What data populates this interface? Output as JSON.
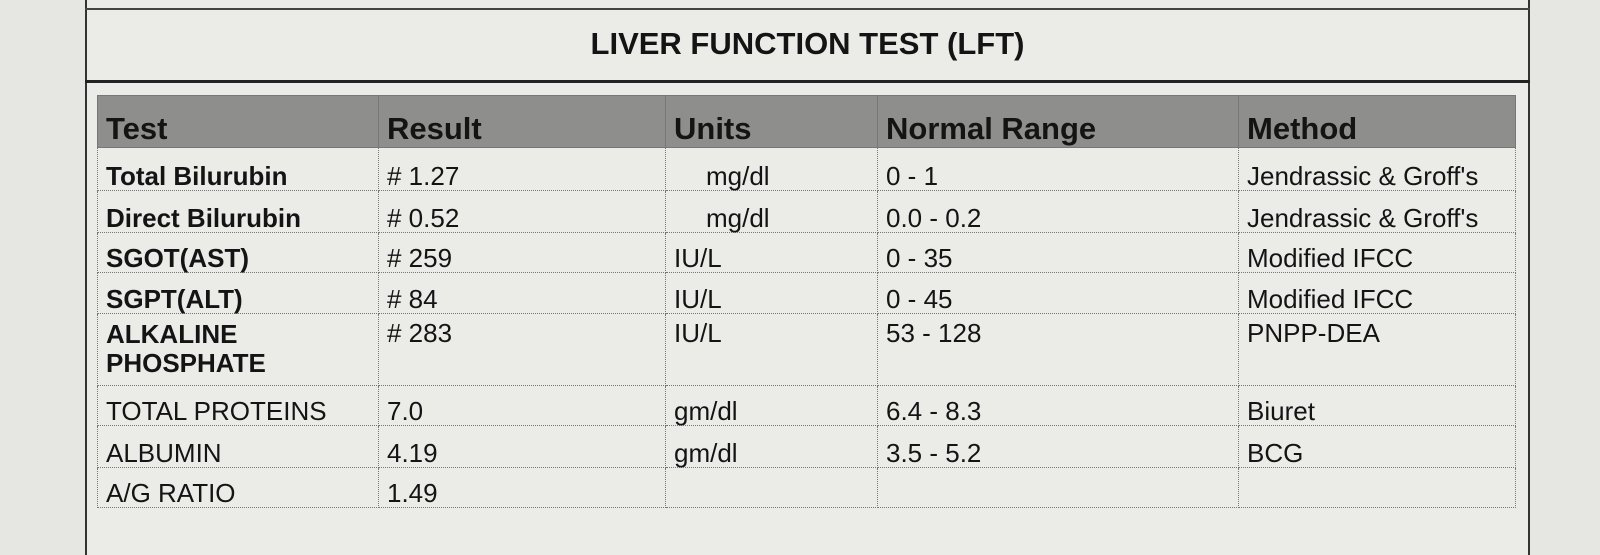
{
  "header": {
    "title": "LIVER FUNCTION TEST (LFT)"
  },
  "table": {
    "columns": [
      "Test",
      "Result",
      "Units",
      "Normal Range",
      "Method"
    ],
    "rows": [
      [
        "Total Bilurubin",
        "# 1.27",
        "mg/dl",
        "0 - 1",
        "Jendrassic & Groff's"
      ],
      [
        "Direct Bilurubin",
        "# 0.52",
        "mg/dl",
        "0.0 - 0.2",
        "Jendrassic & Groff's"
      ],
      [
        "SGOT(AST)",
        "# 259",
        "IU/L",
        "0 - 35",
        "Modified IFCC"
      ],
      [
        "SGPT(ALT)",
        "# 84",
        "IU/L",
        "0 - 45",
        "Modified IFCC"
      ],
      [
        "ALKALINE PHOSPHATE",
        "# 283",
        "IU/L",
        "53 - 128",
        "PNPP-DEA"
      ],
      [
        "TOTAL PROTEINS",
        "7.0",
        "gm/dl",
        "6.4 - 8.3",
        "Biuret"
      ],
      [
        "ALBUMIN",
        "4.19",
        "gm/dl",
        "3.5 - 5.2",
        "BCG"
      ],
      [
        "A/G RATIO",
        "1.49",
        null,
        null,
        null
      ]
    ]
  }
}
